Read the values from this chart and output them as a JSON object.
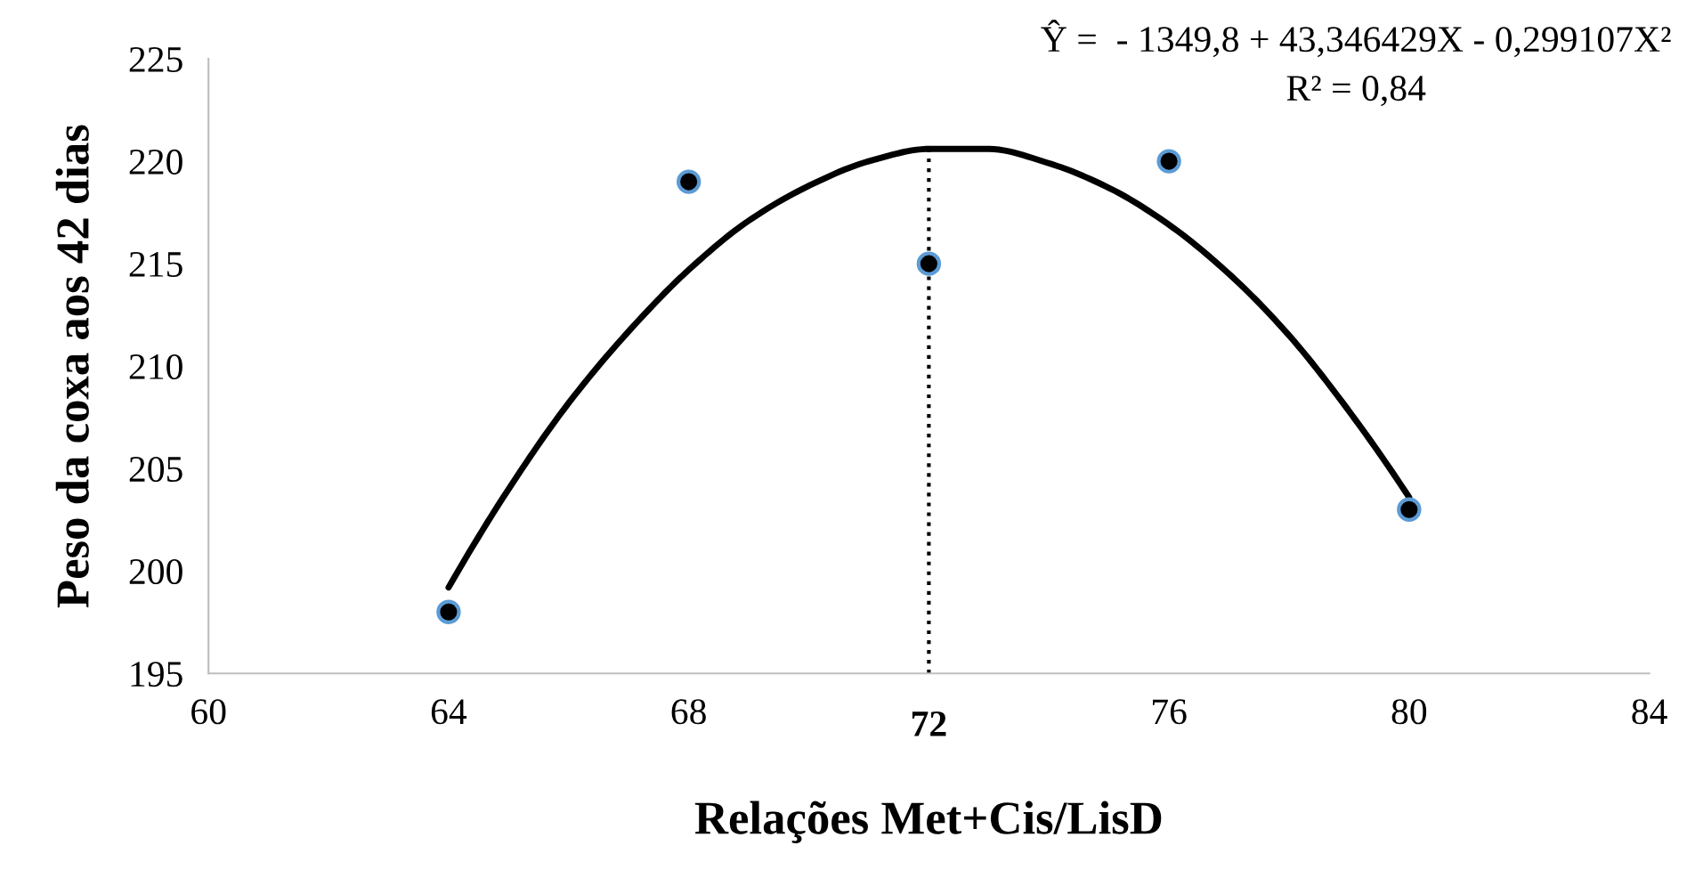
{
  "chart_data": {
    "type": "scatter",
    "xlabel": "Relações Met+Cis/LisD",
    "ylabel": "Peso da coxa aos 42 dias",
    "xlim": [
      60,
      84
    ],
    "xticks": [
      60,
      64,
      68,
      76,
      80,
      84
    ],
    "ylim": [
      195,
      225
    ],
    "yticks": [
      195,
      200,
      205,
      210,
      215,
      220,
      225
    ],
    "grid": false,
    "legend": false,
    "marker": "circle",
    "series": [
      {
        "color": "#000000",
        "x": [
          64,
          68,
          72,
          76,
          80
        ],
        "values": [
          198,
          219,
          215,
          220,
          203
        ]
      },
      {
        "type": "line",
        "color": "#000000",
        "line_style": "solid",
        "marker": "none",
        "x": [
          64,
          65,
          66,
          67,
          68,
          69,
          70,
          71,
          72,
          72.5,
          73,
          74,
          75,
          76,
          77,
          78,
          79,
          80
        ],
        "values": [
          199.2,
          204.0,
          208.2,
          211.7,
          214.7,
          217.1,
          218.8,
          220.0,
          220.6,
          220.6,
          220.6,
          219.9,
          218.7,
          216.9,
          214.5,
          211.5,
          207.8,
          203.6
        ]
      }
    ],
    "ref_lines": [
      {
        "axis": "x",
        "value": 72,
        "label": "72",
        "line_style": "dotted",
        "color": "#000000"
      }
    ],
    "annotations": [
      "Ŷ =  - 1349,8 + 43,346429X - 0,299107X²",
      "R² = 0,84"
    ]
  }
}
